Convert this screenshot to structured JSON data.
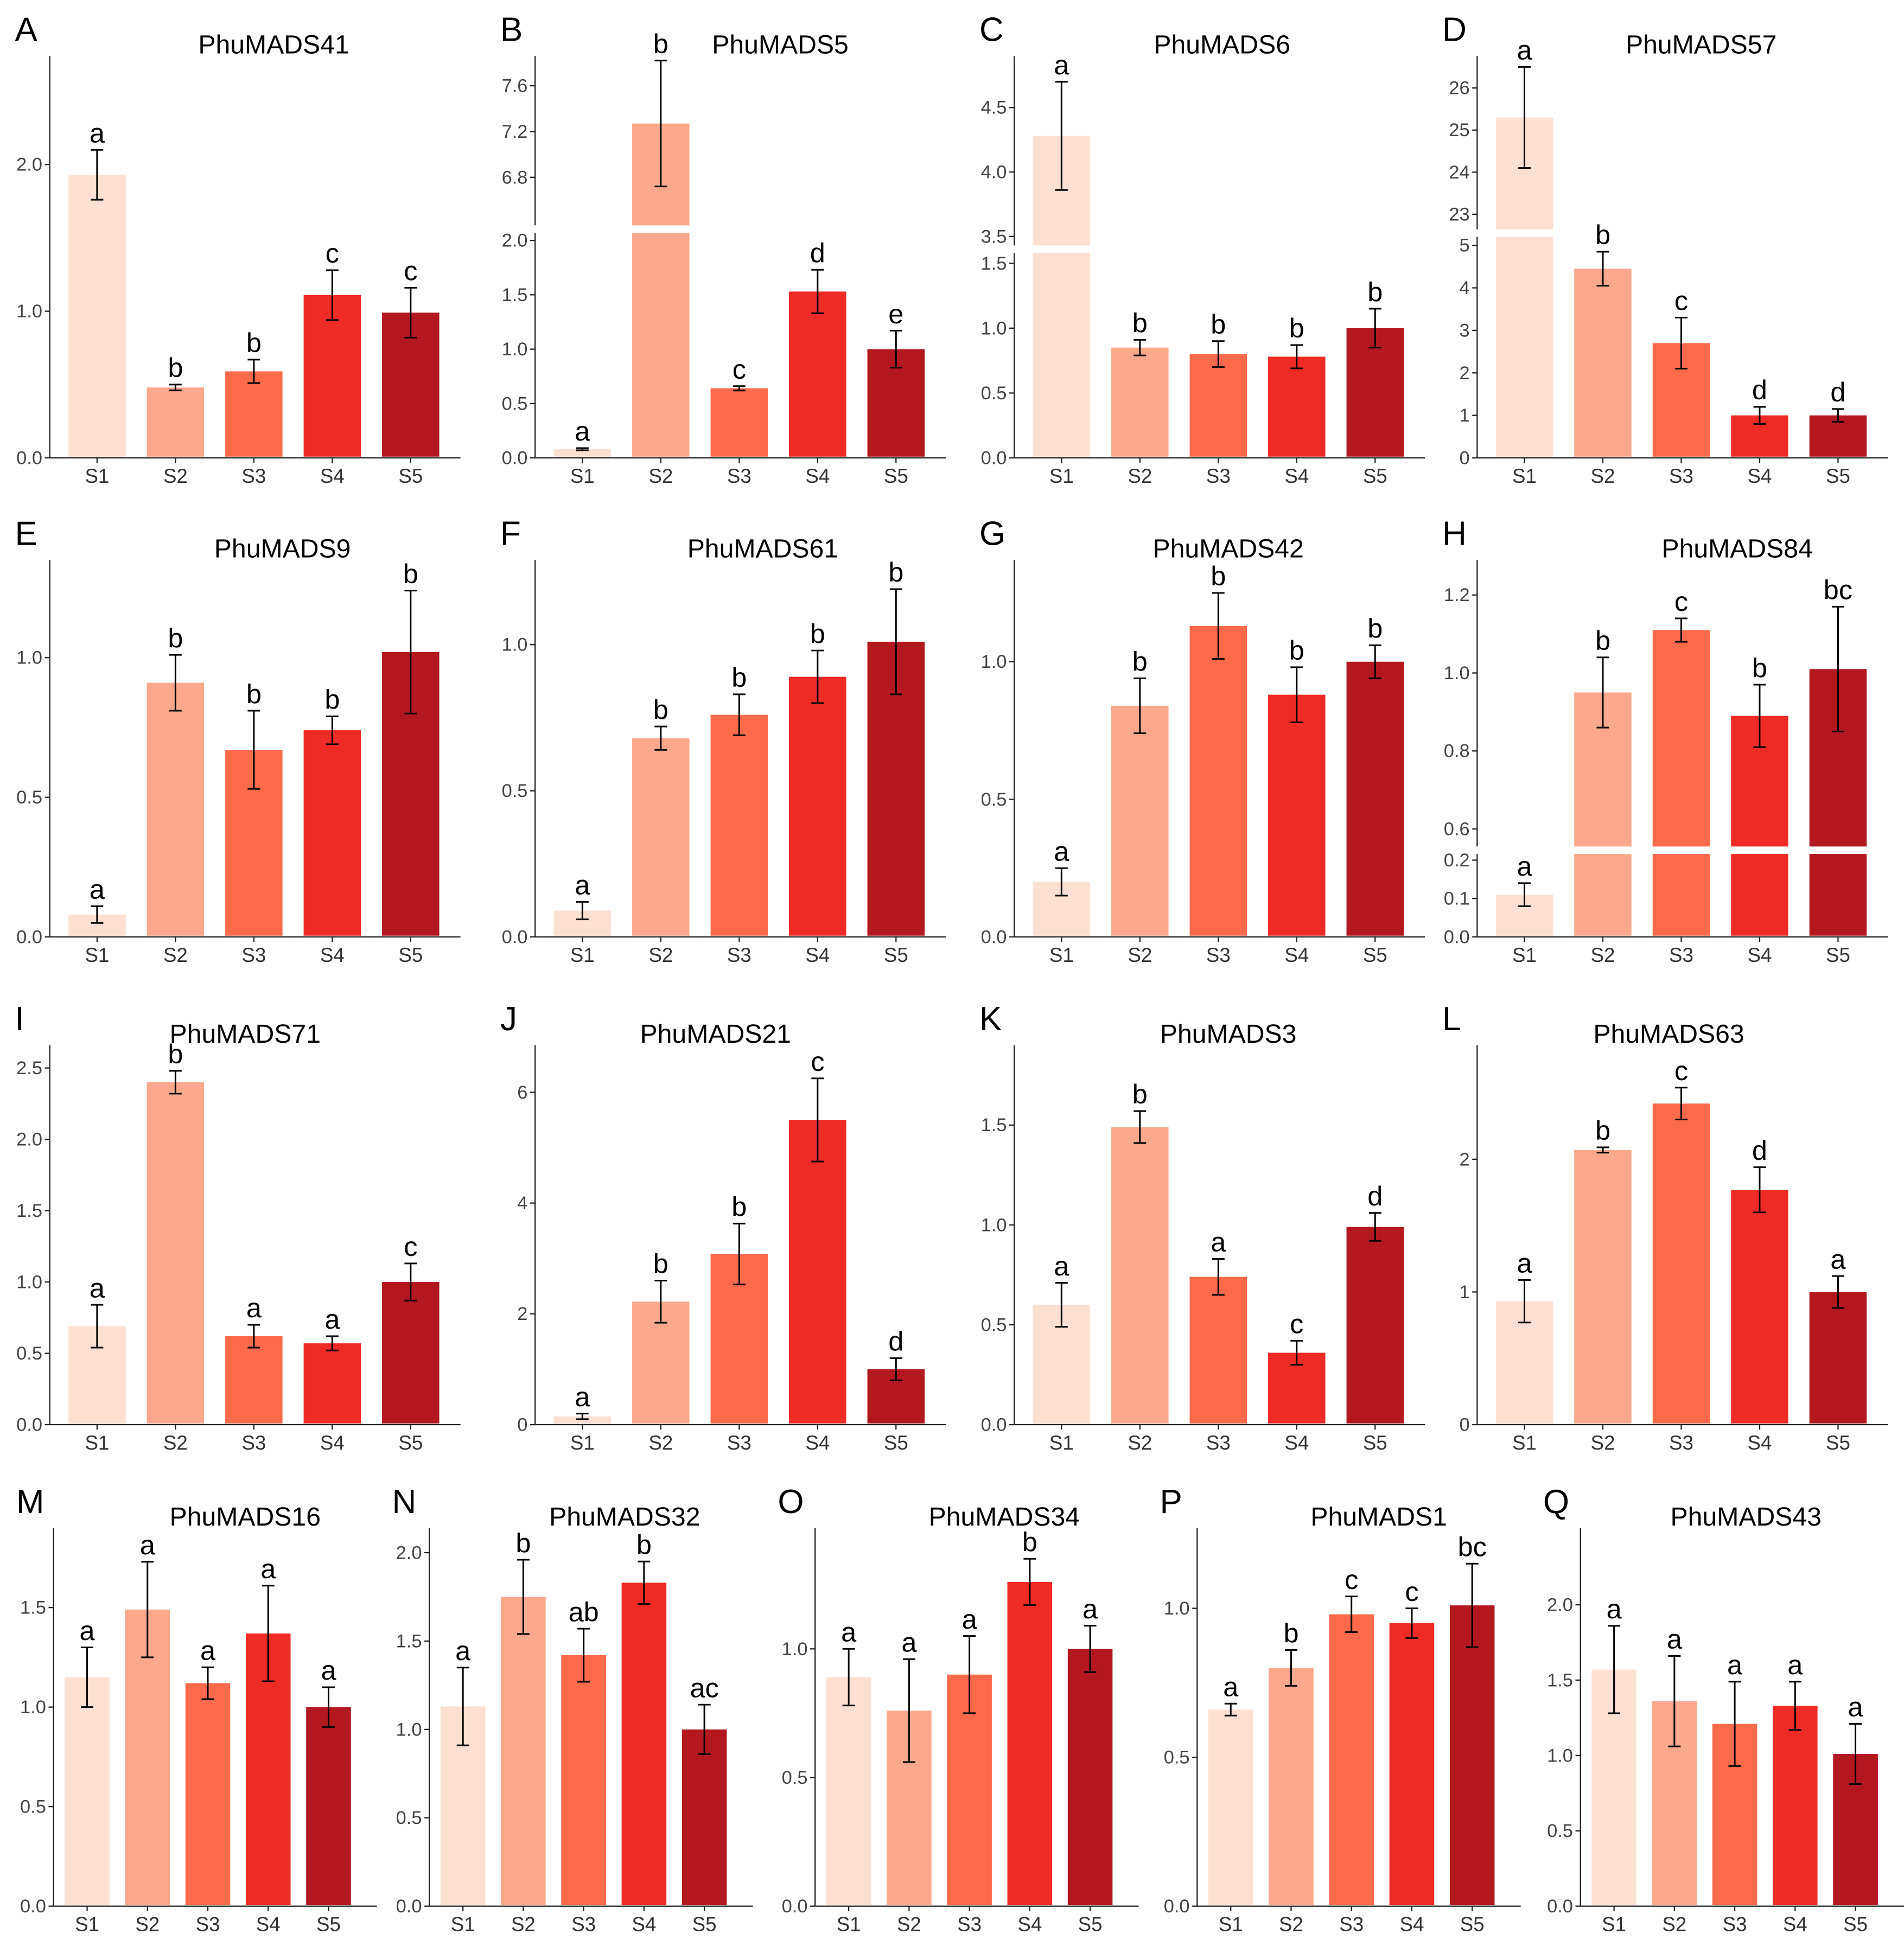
{
  "colors": {
    "S1": "#fee0d2",
    "S2": "#fca88c",
    "S3": "#fb6a4a",
    "S4": "#ef2b26",
    "S5": "#b3181f"
  },
  "chart_data": [
    {
      "type": "bar",
      "panel": "A",
      "title": "PhuMADS41",
      "categories": [
        "S1",
        "S2",
        "S3",
        "S4",
        "S5"
      ],
      "values": [
        1.93,
        0.48,
        0.59,
        1.11,
        0.99
      ],
      "errors": [
        0.17,
        0.02,
        0.08,
        0.17,
        0.17
      ],
      "significance": [
        "a",
        "b",
        "b",
        "c",
        "c"
      ],
      "ylim": [
        0,
        2.74
      ],
      "yticks": [
        "0.0",
        "1.0",
        "2.0"
      ]
    },
    {
      "type": "bar",
      "panel": "B",
      "title": "PhuMADS5",
      "categories": [
        "S1",
        "S2",
        "S3",
        "S4",
        "S5"
      ],
      "values": [
        0.08,
        7.27,
        0.64,
        1.53,
        1.0
      ],
      "errors": [
        0.01,
        0.55,
        0.02,
        0.2,
        0.17
      ],
      "significance": [
        "a",
        "b",
        "c",
        "d",
        "e"
      ],
      "axis_break": {
        "lower": [
          0,
          2.07
        ],
        "upper": [
          6.38,
          7.86
        ]
      },
      "yticks": [
        "0.0",
        "0.5",
        "1.0",
        "1.5",
        "2.0",
        "6.8",
        "7.2",
        "7.6"
      ]
    },
    {
      "type": "bar",
      "panel": "C",
      "title": "PhuMADS6",
      "categories": [
        "S1",
        "S2",
        "S3",
        "S4",
        "S5"
      ],
      "values": [
        4.28,
        0.85,
        0.8,
        0.78,
        1.0
      ],
      "errors": [
        0.42,
        0.06,
        0.1,
        0.09,
        0.15
      ],
      "significance": [
        "a",
        "b",
        "b",
        "b",
        "b"
      ],
      "axis_break": {
        "lower": [
          0,
          1.58
        ],
        "upper": [
          3.43,
          4.9
        ]
      },
      "yticks": [
        "0.0",
        "0.5",
        "1.0",
        "1.5",
        "3.5",
        "4.0",
        "4.5"
      ]
    },
    {
      "type": "bar",
      "panel": "D",
      "title": "PhuMADS57",
      "categories": [
        "S1",
        "S2",
        "S3",
        "S4",
        "S5"
      ],
      "values": [
        25.3,
        4.45,
        2.7,
        1.0,
        1.0
      ],
      "errors": [
        1.2,
        0.4,
        0.6,
        0.2,
        0.15
      ],
      "significance": [
        "a",
        "b",
        "c",
        "d",
        "d"
      ],
      "axis_break": {
        "lower": [
          0,
          5.2
        ],
        "upper": [
          22.64,
          26.76
        ]
      },
      "yticks": [
        "0",
        "1",
        "2",
        "3",
        "4",
        "5",
        "23",
        "24",
        "25",
        "26"
      ]
    },
    {
      "type": "bar",
      "panel": "E",
      "title": "PhuMADS9",
      "categories": [
        "S1",
        "S2",
        "S3",
        "S4",
        "S5"
      ],
      "values": [
        0.08,
        0.91,
        0.67,
        0.74,
        1.02
      ],
      "errors": [
        0.03,
        0.1,
        0.14,
        0.05,
        0.22
      ],
      "significance": [
        "a",
        "b",
        "b",
        "b",
        "b"
      ],
      "ylim": [
        0,
        1.35
      ],
      "yticks": [
        "0.0",
        "0.5",
        "1.0"
      ]
    },
    {
      "type": "bar",
      "panel": "F",
      "title": "PhuMADS61",
      "categories": [
        "S1",
        "S2",
        "S3",
        "S4",
        "S5"
      ],
      "values": [
        0.09,
        0.68,
        0.76,
        0.89,
        1.01
      ],
      "errors": [
        0.03,
        0.04,
        0.07,
        0.09,
        0.18
      ],
      "significance": [
        "a",
        "b",
        "b",
        "b",
        "b"
      ],
      "ylim": [
        0,
        1.29
      ],
      "yticks": [
        "0.0",
        "0.5",
        "1.0"
      ]
    },
    {
      "type": "bar",
      "panel": "G",
      "title": "PhuMADS42",
      "categories": [
        "S1",
        "S2",
        "S3",
        "S4",
        "S5"
      ],
      "values": [
        0.2,
        0.84,
        1.13,
        0.88,
        1.0
      ],
      "errors": [
        0.05,
        0.1,
        0.12,
        0.1,
        0.06
      ],
      "significance": [
        "a",
        "b",
        "b",
        "b",
        "b"
      ],
      "ylim": [
        0,
        1.37
      ],
      "yticks": [
        "0.0",
        "0.5",
        "1.0"
      ]
    },
    {
      "type": "bar",
      "panel": "H",
      "title": "PhuMADS84",
      "categories": [
        "S1",
        "S2",
        "S3",
        "S4",
        "S5"
      ],
      "values": [
        0.11,
        0.95,
        1.11,
        0.89,
        1.01
      ],
      "errors": [
        0.03,
        0.09,
        0.03,
        0.08,
        0.16
      ],
      "significance": [
        "a",
        "b",
        "c",
        "b",
        "bc"
      ],
      "axis_break": {
        "lower": [
          0,
          0.216
        ],
        "upper": [
          0.555,
          1.29
        ]
      },
      "yticks": [
        "0.0",
        "0.1",
        "0.2",
        "0.6",
        "0.8",
        "1.0",
        "1.2"
      ]
    },
    {
      "type": "bar",
      "panel": "I",
      "title": "PhuMADS71",
      "categories": [
        "S1",
        "S2",
        "S3",
        "S4",
        "S5"
      ],
      "values": [
        0.69,
        2.4,
        0.62,
        0.57,
        1.0
      ],
      "errors": [
        0.15,
        0.08,
        0.08,
        0.05,
        0.13
      ],
      "significance": [
        "a",
        "b",
        "a",
        "a",
        "c"
      ],
      "ylim": [
        0,
        2.66
      ],
      "yticks": [
        "0.0",
        "0.5",
        "1.0",
        "1.5",
        "2.0",
        "2.5"
      ]
    },
    {
      "type": "bar",
      "panel": "J",
      "title": "PhuMADS21",
      "categories": [
        "S1",
        "S2",
        "S3",
        "S4",
        "S5"
      ],
      "values": [
        0.15,
        2.22,
        3.08,
        5.5,
        1.0
      ],
      "errors": [
        0.05,
        0.38,
        0.55,
        0.75,
        0.2
      ],
      "significance": [
        "a",
        "b",
        "b",
        "c",
        "d"
      ],
      "ylim": [
        0,
        6.85
      ],
      "yticks": [
        "0",
        "2",
        "4",
        "6"
      ]
    },
    {
      "type": "bar",
      "panel": "K",
      "title": "PhuMADS3",
      "categories": [
        "S1",
        "S2",
        "S3",
        "S4",
        "S5"
      ],
      "values": [
        0.6,
        1.49,
        0.74,
        0.36,
        0.99
      ],
      "errors": [
        0.11,
        0.08,
        0.09,
        0.06,
        0.07
      ],
      "significance": [
        "a",
        "b",
        "a",
        "c",
        "d"
      ],
      "ylim": [
        0,
        1.9
      ],
      "yticks": [
        "0.0",
        "0.5",
        "1.0",
        "1.5"
      ]
    },
    {
      "type": "bar",
      "panel": "L",
      "title": "PhuMADS63",
      "categories": [
        "S1",
        "S2",
        "S3",
        "S4",
        "S5"
      ],
      "values": [
        0.93,
        2.07,
        2.42,
        1.77,
        1.0
      ],
      "errors": [
        0.16,
        0.02,
        0.12,
        0.17,
        0.12
      ],
      "significance": [
        "a",
        "b",
        "c",
        "d",
        "a"
      ],
      "ylim": [
        0,
        2.86
      ],
      "yticks": [
        "0",
        "1",
        "2"
      ]
    },
    {
      "type": "bar",
      "panel": "M",
      "title": "PhuMADS16",
      "categories": [
        "S1",
        "S2",
        "S3",
        "S4",
        "S5"
      ],
      "values": [
        1.15,
        1.49,
        1.12,
        1.37,
        1.0
      ],
      "errors": [
        0.15,
        0.24,
        0.08,
        0.24,
        0.1
      ],
      "significance": [
        "a",
        "a",
        "a",
        "a",
        "a"
      ],
      "ylim": [
        0,
        1.9
      ],
      "yticks": [
        "0.0",
        "0.5",
        "1.0",
        "1.5"
      ]
    },
    {
      "type": "bar",
      "panel": "N",
      "title": "PhuMADS32",
      "categories": [
        "S1",
        "S2",
        "S3",
        "S4",
        "S5"
      ],
      "values": [
        1.13,
        1.75,
        1.42,
        1.83,
        1.0
      ],
      "errors": [
        0.22,
        0.21,
        0.15,
        0.12,
        0.14
      ],
      "significance": [
        "a",
        "b",
        "ab",
        "b",
        "ac"
      ],
      "ylim": [
        0,
        2.14
      ],
      "yticks": [
        "0.0",
        "0.5",
        "1.0",
        "1.5",
        "2.0"
      ]
    },
    {
      "type": "bar",
      "panel": "O",
      "title": "PhuMADS34",
      "categories": [
        "S1",
        "S2",
        "S3",
        "S4",
        "S5"
      ],
      "values": [
        0.89,
        0.76,
        0.9,
        1.26,
        1.0
      ],
      "errors": [
        0.11,
        0.2,
        0.15,
        0.09,
        0.09
      ],
      "significance": [
        "a",
        "a",
        "a",
        "b",
        "a"
      ],
      "ylim": [
        0,
        1.47
      ],
      "yticks": [
        "0.0",
        "0.5",
        "1.0"
      ]
    },
    {
      "type": "bar",
      "panel": "P",
      "title": "PhuMADS1",
      "categories": [
        "S1",
        "S2",
        "S3",
        "S4",
        "S5"
      ],
      "values": [
        0.66,
        0.8,
        0.98,
        0.95,
        1.01
      ],
      "errors": [
        0.02,
        0.06,
        0.06,
        0.05,
        0.14
      ],
      "significance": [
        "a",
        "b",
        "c",
        "c",
        "bc"
      ],
      "ylim": [
        0,
        1.27
      ],
      "yticks": [
        "0.0",
        "0.5",
        "1.0"
      ]
    },
    {
      "type": "bar",
      "panel": "Q",
      "title": "PhuMADS43",
      "categories": [
        "S1",
        "S2",
        "S3",
        "S4",
        "S5"
      ],
      "values": [
        1.57,
        1.36,
        1.21,
        1.33,
        1.01
      ],
      "errors": [
        0.29,
        0.3,
        0.28,
        0.16,
        0.2
      ],
      "significance": [
        "a",
        "a",
        "a",
        "a",
        "a"
      ],
      "ylim": [
        0,
        2.51
      ],
      "yticks": [
        "0.0",
        "0.5",
        "1.0",
        "1.5",
        "2.0"
      ]
    }
  ]
}
